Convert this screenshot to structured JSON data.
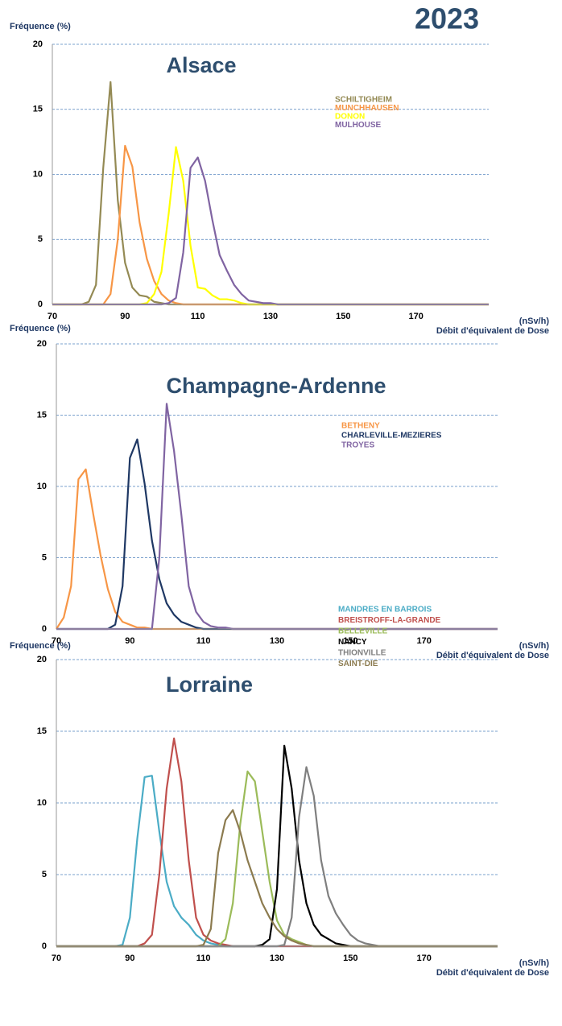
{
  "title": "2023",
  "chart_data": [
    {
      "type": "line",
      "title": "Alsace",
      "y_label": "Fréquence (%)",
      "x_label": "Débit d'équivalent de Dose",
      "x_unit": "(nSv/h)",
      "xlim": [
        70,
        190
      ],
      "ylim": [
        0,
        20
      ],
      "xticks": [
        70,
        90,
        110,
        130,
        150,
        170
      ],
      "yticks": [
        0,
        5,
        10,
        15,
        20
      ],
      "grid": true,
      "x": [
        70,
        72,
        74,
        76,
        78,
        80,
        82,
        84,
        86,
        88,
        90,
        92,
        94,
        96,
        98,
        100,
        102,
        104,
        106,
        108,
        110,
        112,
        114,
        116,
        118,
        120,
        122,
        124,
        126,
        128,
        130,
        132,
        134,
        136,
        138,
        140,
        142,
        144,
        146,
        148,
        150,
        152,
        154,
        156,
        158,
        160,
        190
      ],
      "series": [
        {
          "name": "SCHILTIGHEIM",
          "color": "#948a54",
          "values": [
            0,
            0,
            0,
            0,
            0,
            0.2,
            1.5,
            10.5,
            17.1,
            8,
            3.2,
            1.3,
            0.7,
            0.6,
            0.2,
            0.1,
            0,
            0,
            0,
            0,
            0,
            0,
            0,
            0,
            0,
            0,
            0,
            0,
            0,
            0,
            0,
            0,
            0,
            0,
            0,
            0,
            0,
            0,
            0,
            0,
            0,
            0,
            0,
            0,
            0,
            0,
            0
          ]
        },
        {
          "name": "MUNCHHAUSEN",
          "color": "#f79646",
          "values": [
            0,
            0,
            0,
            0,
            0,
            0,
            0,
            0,
            0.8,
            5,
            12.2,
            10.6,
            6.3,
            3.5,
            1.8,
            0.8,
            0.3,
            0.1,
            0,
            0,
            0,
            0,
            0,
            0,
            0,
            0,
            0,
            0,
            0,
            0,
            0,
            0,
            0,
            0,
            0,
            0,
            0,
            0,
            0,
            0,
            0,
            0,
            0,
            0,
            0,
            0,
            0
          ]
        },
        {
          "name": "DONON",
          "color": "#ffff00",
          "values": [
            0,
            0,
            0,
            0,
            0,
            0,
            0,
            0,
            0,
            0,
            0,
            0,
            0,
            0.1,
            0.8,
            2.5,
            7,
            12.1,
            9.5,
            4.5,
            1.3,
            1.2,
            0.7,
            0.4,
            0.4,
            0.3,
            0.1,
            0,
            0,
            0,
            0,
            0,
            0,
            0,
            0,
            0,
            0,
            0,
            0,
            0,
            0,
            0,
            0,
            0,
            0,
            0,
            0
          ]
        },
        {
          "name": "MULHOUSE",
          "color": "#8064a2",
          "values": [
            0,
            0,
            0,
            0,
            0,
            0,
            0,
            0,
            0,
            0,
            0,
            0,
            0,
            0,
            0,
            0,
            0.1,
            0.5,
            4,
            10.5,
            11.3,
            9.5,
            6.5,
            3.8,
            2.6,
            1.5,
            0.8,
            0.3,
            0.2,
            0.1,
            0.1,
            0,
            0,
            0,
            0,
            0,
            0,
            0,
            0,
            0,
            0,
            0,
            0,
            0,
            0,
            0,
            0
          ]
        }
      ]
    },
    {
      "type": "line",
      "title": "Champagne-Ardenne",
      "y_label": "Fréquence (%)",
      "x_label": "Débit d'équivalent de Dose",
      "x_unit": "(nSv/h)",
      "xlim": [
        70,
        190
      ],
      "ylim": [
        0,
        20
      ],
      "xticks": [
        70,
        90,
        110,
        130,
        150,
        170
      ],
      "yticks": [
        0,
        5,
        10,
        15,
        20
      ],
      "grid": true,
      "x": [
        70,
        72,
        74,
        76,
        78,
        80,
        82,
        84,
        86,
        88,
        90,
        92,
        94,
        96,
        98,
        100,
        102,
        104,
        106,
        108,
        110,
        112,
        114,
        116,
        118,
        120,
        122,
        124,
        126,
        128,
        130,
        132,
        134,
        136,
        138,
        140,
        142,
        144,
        146,
        148,
        150,
        152,
        154,
        156,
        158,
        160,
        190
      ],
      "series": [
        {
          "name": "BETHENY",
          "color": "#f79646",
          "values": [
            0,
            0.8,
            3,
            10.5,
            11.2,
            8.1,
            5.2,
            2.8,
            1.2,
            0.5,
            0.3,
            0.1,
            0.1,
            0,
            0,
            0,
            0,
            0,
            0,
            0,
            0,
            0,
            0,
            0,
            0,
            0,
            0,
            0,
            0,
            0,
            0,
            0,
            0,
            0,
            0,
            0,
            0,
            0,
            0,
            0,
            0,
            0,
            0,
            0,
            0,
            0,
            0
          ]
        },
        {
          "name": "CHARLEVILLE-MEZIERES",
          "color": "#1f3864",
          "values": [
            0,
            0,
            0,
            0,
            0,
            0,
            0,
            0,
            0.3,
            3,
            12,
            13.3,
            10.2,
            6.2,
            3.5,
            1.8,
            1,
            0.5,
            0.3,
            0.1,
            0,
            0,
            0,
            0,
            0,
            0,
            0,
            0,
            0,
            0,
            0,
            0,
            0,
            0,
            0,
            0,
            0,
            0,
            0,
            0,
            0,
            0,
            0,
            0,
            0,
            0,
            0
          ]
        },
        {
          "name": "TROYES",
          "color": "#8064a2",
          "values": [
            0,
            0,
            0,
            0,
            0,
            0,
            0,
            0,
            0,
            0,
            0,
            0,
            0,
            0,
            5,
            15.8,
            12.5,
            8,
            3,
            1.2,
            0.5,
            0.2,
            0.1,
            0.1,
            0,
            0,
            0,
            0,
            0,
            0,
            0,
            0,
            0,
            0,
            0,
            0,
            0,
            0,
            0,
            0,
            0,
            0,
            0,
            0,
            0,
            0,
            0
          ]
        }
      ]
    },
    {
      "type": "line",
      "title": "Lorraine",
      "y_label": "Fréquence (%)",
      "x_label": "Débit d'équivalent de Dose",
      "x_unit": "(nSv/h)",
      "xlim": [
        70,
        190
      ],
      "ylim": [
        0,
        20
      ],
      "xticks": [
        70,
        90,
        110,
        130,
        150,
        170
      ],
      "yticks": [
        0,
        5,
        10,
        15,
        20
      ],
      "grid": true,
      "x": [
        70,
        72,
        74,
        76,
        78,
        80,
        82,
        84,
        86,
        88,
        90,
        92,
        94,
        96,
        98,
        100,
        102,
        104,
        106,
        108,
        110,
        112,
        114,
        116,
        118,
        120,
        122,
        124,
        126,
        128,
        130,
        132,
        134,
        136,
        138,
        140,
        142,
        144,
        146,
        148,
        150,
        152,
        154,
        156,
        158,
        160,
        190
      ],
      "series": [
        {
          "name": "MANDRES EN BARROIS",
          "color": "#4bacc6",
          "values": [
            0,
            0,
            0,
            0,
            0,
            0,
            0,
            0,
            0,
            0.1,
            2,
            7.5,
            11.8,
            11.9,
            8,
            4.5,
            2.8,
            2,
            1.5,
            0.8,
            0.4,
            0.2,
            0.1,
            0,
            0,
            0,
            0,
            0,
            0,
            0,
            0,
            0,
            0,
            0,
            0,
            0,
            0,
            0,
            0,
            0,
            0,
            0,
            0,
            0,
            0,
            0,
            0
          ]
        },
        {
          "name": "BREISTROFF-LA-GRANDE",
          "color": "#c0504d",
          "values": [
            0,
            0,
            0,
            0,
            0,
            0,
            0,
            0,
            0,
            0,
            0,
            0,
            0.2,
            0.8,
            5,
            11,
            14.5,
            11.5,
            6,
            2,
            0.8,
            0.4,
            0.2,
            0.1,
            0,
            0,
            0,
            0,
            0,
            0,
            0,
            0,
            0,
            0,
            0,
            0,
            0,
            0,
            0,
            0,
            0,
            0,
            0,
            0,
            0,
            0,
            0
          ]
        },
        {
          "name": "BELLEVILLE",
          "color": "#9bbb59",
          "values": [
            0,
            0,
            0,
            0,
            0,
            0,
            0,
            0,
            0,
            0,
            0,
            0,
            0,
            0,
            0,
            0,
            0,
            0,
            0,
            0,
            0,
            0,
            0,
            0.5,
            3,
            8.5,
            12.2,
            11.5,
            8,
            4.5,
            1.8,
            0.8,
            0.5,
            0.3,
            0.1,
            0,
            0,
            0,
            0,
            0,
            0,
            0,
            0,
            0,
            0,
            0,
            0
          ]
        },
        {
          "name": "NANCY",
          "color": "#000000",
          "values": [
            0,
            0,
            0,
            0,
            0,
            0,
            0,
            0,
            0,
            0,
            0,
            0,
            0,
            0,
            0,
            0,
            0,
            0,
            0,
            0,
            0,
            0,
            0,
            0,
            0,
            0,
            0,
            0,
            0.1,
            0.5,
            4,
            14,
            11,
            6,
            3,
            1.5,
            0.8,
            0.5,
            0.2,
            0.1,
            0,
            0,
            0,
            0,
            0,
            0,
            0
          ]
        },
        {
          "name": "THIONVILLE",
          "color": "#7f7f7f",
          "values": [
            0,
            0,
            0,
            0,
            0,
            0,
            0,
            0,
            0,
            0,
            0,
            0,
            0,
            0,
            0,
            0,
            0,
            0,
            0,
            0,
            0,
            0,
            0,
            0,
            0,
            0,
            0,
            0,
            0,
            0,
            0,
            0.1,
            2,
            9,
            12.5,
            10.5,
            6,
            3.5,
            2.3,
            1.5,
            0.8,
            0.4,
            0.2,
            0.1,
            0,
            0,
            0
          ]
        },
        {
          "name": "SAINT-DIE",
          "color": "#8c7b4f",
          "values": [
            0,
            0,
            0,
            0,
            0,
            0,
            0,
            0,
            0,
            0,
            0,
            0,
            0,
            0,
            0,
            0,
            0,
            0,
            0,
            0,
            0.1,
            1.2,
            6.5,
            8.8,
            9.5,
            8,
            6,
            4.5,
            3,
            2,
            1.2,
            0.7,
            0.4,
            0.2,
            0.1,
            0,
            0,
            0,
            0,
            0,
            0,
            0,
            0,
            0,
            0,
            0,
            0
          ]
        }
      ]
    }
  ]
}
